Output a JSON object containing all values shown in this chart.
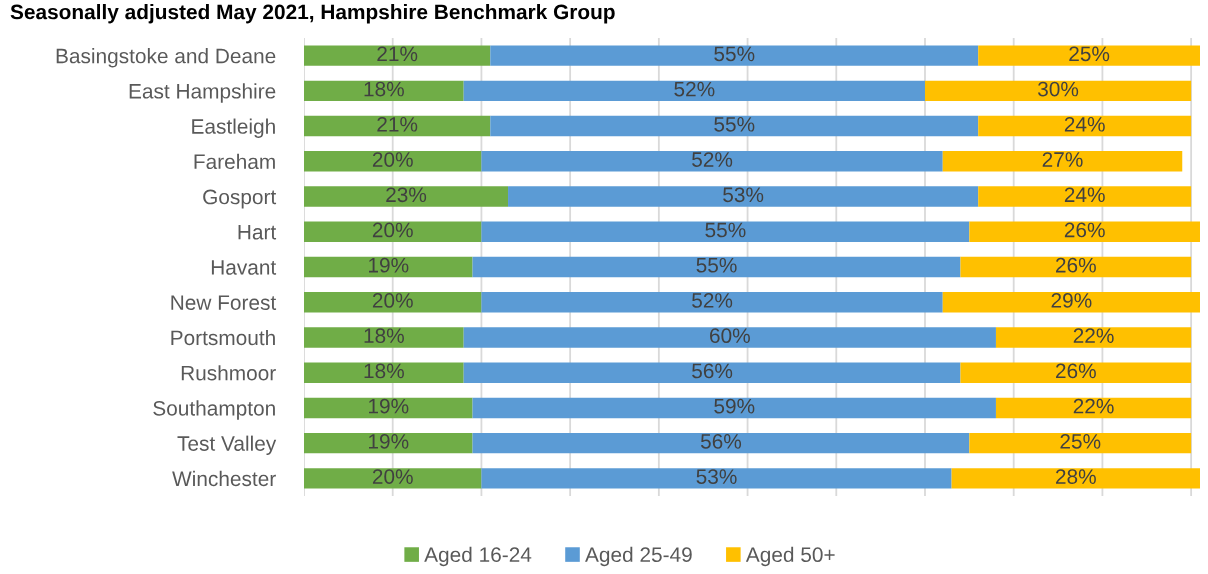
{
  "chart_data": {
    "type": "bar",
    "orientation": "horizontal",
    "stacked": true,
    "title": "Seasonally adjusted May 2021, Hampshire Benchmark Group",
    "categories": [
      "Basingstoke and Deane",
      "East Hampshire",
      "Eastleigh",
      "Fareham",
      "Gosport",
      "Hart",
      "Havant",
      "New Forest",
      "Portsmouth",
      "Rushmoor",
      "Southampton",
      "Test Valley",
      "Winchester"
    ],
    "series": [
      {
        "name": "Aged 16-24",
        "color": "#70ad47",
        "values": [
          21,
          18,
          21,
          20,
          23,
          20,
          19,
          20,
          18,
          18,
          19,
          19,
          20
        ],
        "value_labels": [
          "21%",
          "18%",
          "21%",
          "20%",
          "23%",
          "20%",
          "19%",
          "20%",
          "18%",
          "18%",
          "19%",
          "19%",
          "20%"
        ]
      },
      {
        "name": "Aged 25-49",
        "color": "#5b9bd5",
        "values": [
          55,
          52,
          55,
          52,
          53,
          55,
          55,
          52,
          60,
          56,
          59,
          56,
          53
        ],
        "value_labels": [
          "55%",
          "52%",
          "55%",
          "52%",
          "53%",
          "55%",
          "55%",
          "52%",
          "60%",
          "56%",
          "59%",
          "56%",
          "53%"
        ]
      },
      {
        "name": "Aged 50+",
        "color": "#ffc000",
        "values": [
          25,
          30,
          24,
          27,
          24,
          26,
          26,
          29,
          22,
          26,
          22,
          25,
          28
        ],
        "value_labels": [
          "25%",
          "30%",
          "24%",
          "27%",
          "24%",
          "26%",
          "26%",
          "29%",
          "22%",
          "26%",
          "22%",
          "25%",
          "28%"
        ]
      }
    ],
    "xlim": [
      0,
      101
    ],
    "xticks": [
      {
        "value": 0,
        "label": null
      },
      {
        "value": 10,
        "label": null
      },
      {
        "value": 20,
        "label": null
      },
      {
        "value": 30,
        "label": null
      },
      {
        "value": 40,
        "label": null
      },
      {
        "value": 50,
        "label": null
      },
      {
        "value": 60,
        "label": null
      },
      {
        "value": 70,
        "label": null
      },
      {
        "value": 80,
        "label": null
      },
      {
        "value": 90,
        "label": null
      },
      {
        "value": 100,
        "label": null
      }
    ],
    "grid": "x",
    "legend": "bottom",
    "tick_labels": "y"
  }
}
